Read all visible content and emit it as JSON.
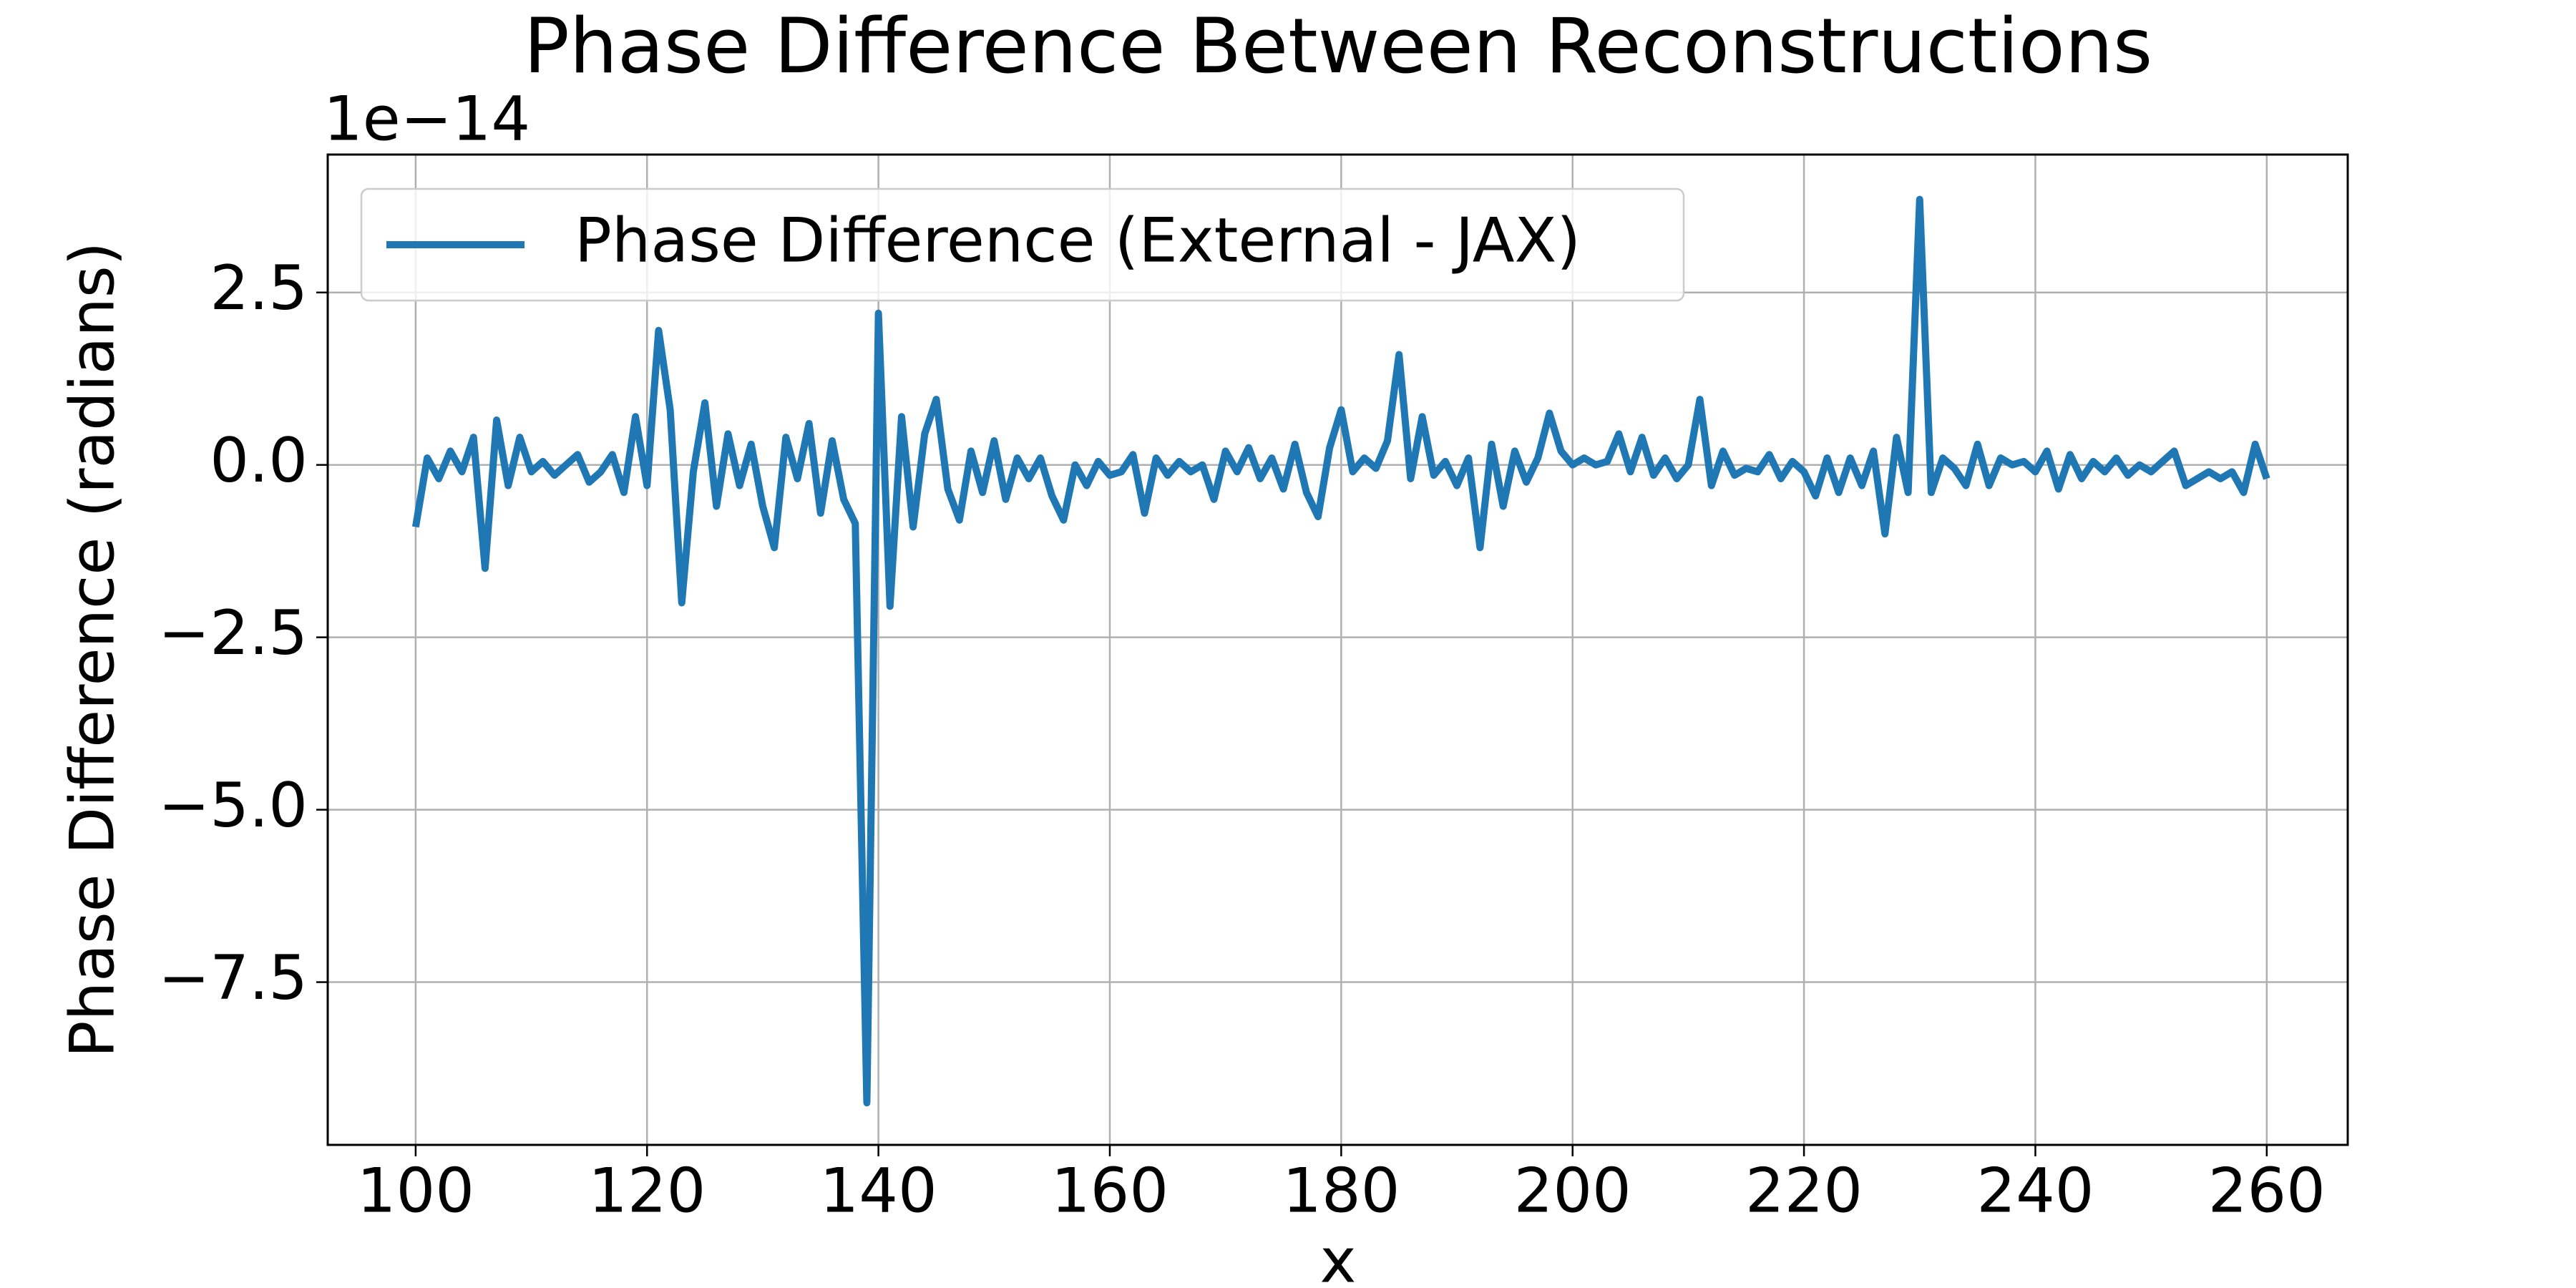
{
  "chart_data": {
    "type": "line",
    "title": "Phase Difference Between Reconstructions",
    "xlabel": "x",
    "ylabel": "Phase Difference (radians)",
    "y_offset_label": "1e−14",
    "x": [
      100,
      101,
      102,
      103,
      104,
      105,
      106,
      107,
      108,
      109,
      110,
      111,
      112,
      113,
      114,
      115,
      116,
      117,
      118,
      119,
      120,
      121,
      122,
      123,
      124,
      125,
      126,
      127,
      128,
      129,
      130,
      131,
      132,
      133,
      134,
      135,
      136,
      137,
      138,
      139,
      140,
      141,
      142,
      143,
      144,
      145,
      146,
      147,
      148,
      149,
      150,
      151,
      152,
      153,
      154,
      155,
      156,
      157,
      158,
      159,
      160,
      161,
      162,
      163,
      164,
      165,
      166,
      167,
      168,
      169,
      170,
      171,
      172,
      173,
      174,
      175,
      176,
      177,
      178,
      179,
      180,
      181,
      182,
      183,
      184,
      185,
      186,
      187,
      188,
      189,
      190,
      191,
      192,
      193,
      194,
      195,
      196,
      197,
      198,
      199,
      200,
      201,
      202,
      203,
      204,
      205,
      206,
      207,
      208,
      209,
      210,
      211,
      212,
      213,
      214,
      215,
      216,
      217,
      218,
      219,
      220,
      221,
      222,
      223,
      224,
      225,
      226,
      227,
      228,
      229,
      230,
      231,
      232,
      233,
      234,
      235,
      236,
      237,
      238,
      239,
      240,
      241,
      242,
      243,
      244,
      245,
      246,
      247,
      248,
      249,
      250,
      251,
      252,
      253,
      254,
      255,
      256,
      257,
      258,
      259,
      260
    ],
    "series": [
      {
        "name": "Phase Difference (External - JAX)",
        "color": "#1f77b4",
        "values": [
          -0.9,
          0.1,
          -0.2,
          0.2,
          -0.1,
          0.4,
          -1.5,
          0.65,
          -0.3,
          0.4,
          -0.1,
          0.05,
          -0.15,
          0.0,
          0.15,
          -0.25,
          -0.1,
          0.15,
          -0.4,
          0.7,
          -0.3,
          1.95,
          0.8,
          -2.0,
          -0.1,
          0.9,
          -0.6,
          0.45,
          -0.3,
          0.3,
          -0.6,
          -1.2,
          0.4,
          -0.2,
          0.6,
          -0.7,
          0.35,
          -0.5,
          -0.85,
          -9.25,
          2.2,
          -2.05,
          0.7,
          -0.9,
          0.45,
          0.95,
          -0.35,
          -0.8,
          0.2,
          -0.4,
          0.35,
          -0.5,
          0.1,
          -0.2,
          0.1,
          -0.45,
          -0.8,
          0.0,
          -0.3,
          0.05,
          -0.15,
          -0.1,
          0.15,
          -0.7,
          0.1,
          -0.15,
          0.05,
          -0.1,
          0.0,
          -0.5,
          0.2,
          -0.1,
          0.25,
          -0.2,
          0.1,
          -0.35,
          0.3,
          -0.4,
          -0.75,
          0.25,
          0.8,
          -0.1,
          0.1,
          -0.05,
          0.35,
          1.6,
          -0.2,
          0.7,
          -0.15,
          0.05,
          -0.3,
          0.1,
          -1.2,
          0.3,
          -0.6,
          0.2,
          -0.25,
          0.1,
          0.75,
          0.2,
          0.0,
          0.1,
          0.0,
          0.05,
          0.45,
          -0.1,
          0.4,
          -0.15,
          0.1,
          -0.2,
          0.0,
          0.95,
          -0.3,
          0.2,
          -0.15,
          -0.05,
          -0.1,
          0.15,
          -0.2,
          0.05,
          -0.1,
          -0.45,
          0.1,
          -0.4,
          0.1,
          -0.3,
          0.2,
          -1.0,
          0.4,
          -0.4,
          3.85,
          -0.4,
          0.1,
          -0.05,
          -0.3,
          0.3,
          -0.3,
          0.1,
          0.0,
          0.05,
          -0.1,
          0.2,
          -0.35,
          0.15,
          -0.2,
          0.05,
          -0.1,
          0.1,
          -0.15,
          0.0,
          -0.1,
          0.05,
          0.2,
          -0.3,
          -0.2,
          -0.1,
          -0.2,
          -0.1,
          -0.4,
          0.3,
          -0.2
        ]
      }
    ],
    "xlim": [
      92.4,
      267
    ],
    "ylim": [
      -9.86,
      4.5
    ],
    "xticks": [
      100,
      120,
      140,
      160,
      180,
      200,
      220,
      240,
      260
    ],
    "yticks": [
      {
        "value": -7.5,
        "label": "−7.5"
      },
      {
        "value": -5.0,
        "label": "−5.0"
      },
      {
        "value": -2.5,
        "label": "−2.5"
      },
      {
        "value": 0.0,
        "label": "0.0"
      },
      {
        "value": 2.5,
        "label": "2.5"
      }
    ],
    "grid": true,
    "legend": "upper left"
  }
}
